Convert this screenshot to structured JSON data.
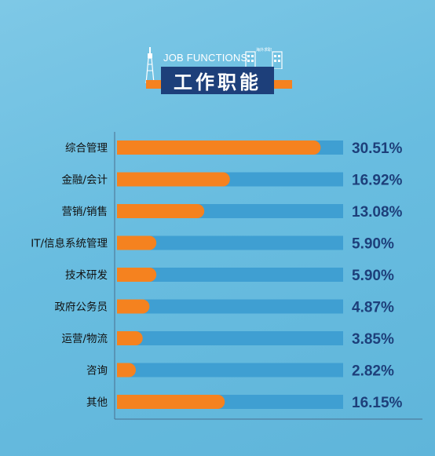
{
  "header": {
    "eyebrow": "JOB FUNCTIONS",
    "title": "工作职能",
    "sign_text": "海外求职"
  },
  "colors": {
    "background": "#6bbfe2",
    "track": "#3f9fd2",
    "bar": "#f5821f",
    "value_text": "#1d3f7a",
    "title_box": "#1d3f7a"
  },
  "chart_data": {
    "type": "bar",
    "orientation": "horizontal",
    "categories": [
      "综合管理",
      "金融/会计",
      "营销/销售",
      "IT/信息系统管理",
      "技术研发",
      "政府公务员",
      "运营/物流",
      "咨询",
      "其他"
    ],
    "values": [
      30.51,
      16.92,
      13.08,
      5.9,
      5.9,
      4.87,
      3.85,
      2.82,
      16.15
    ],
    "value_labels": [
      "30.51%",
      "16.92%",
      "13.08%",
      "5.90%",
      "5.90%",
      "4.87%",
      "3.85%",
      "2.82%",
      "16.15%"
    ],
    "title": "工作职能"
  }
}
